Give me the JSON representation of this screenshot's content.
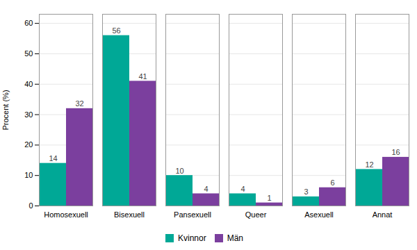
{
  "chart_data": {
    "type": "bar",
    "categories": [
      "Homosexuell",
      "Bisexuell",
      "Pansexuell",
      "Queer",
      "Asexuell",
      "Annat"
    ],
    "series": [
      {
        "name": "Kvinnor",
        "color": "#00A896",
        "values": [
          14,
          56,
          10,
          4,
          3,
          12
        ]
      },
      {
        "name": "Män",
        "color": "#7B3F9E",
        "values": [
          32,
          41,
          4,
          1,
          6,
          16
        ]
      }
    ],
    "ylabel": "Procent (%)",
    "ylim": [
      0,
      63
    ],
    "yticks": [
      0,
      10,
      20,
      30,
      40,
      50,
      60
    ],
    "grid": true,
    "legend": "bottom",
    "data_labels": true
  }
}
